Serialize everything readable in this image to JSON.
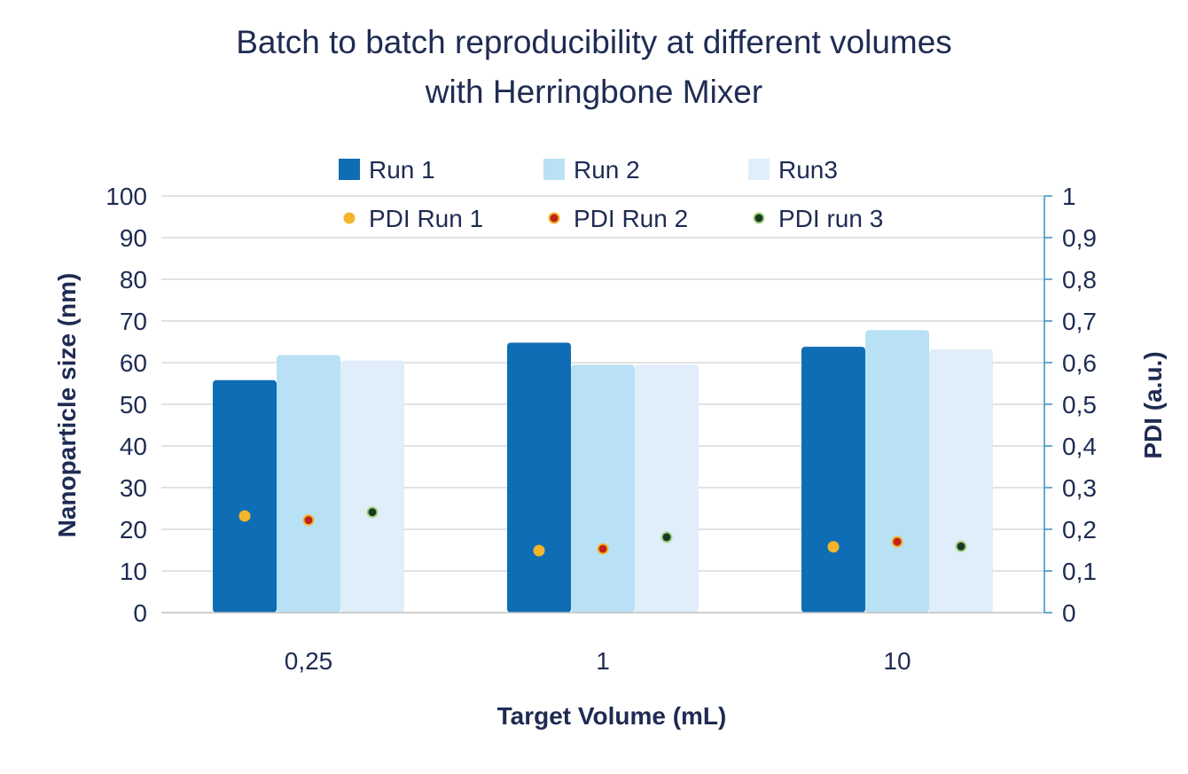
{
  "chart_data": {
    "type": "bar",
    "title_lines": [
      "Batch to batch reproducibility at different volumes",
      "with Herringbone Mixer"
    ],
    "xlabel": "Target Volume (mL)",
    "ylabel": "Nanoparticle size (nm)",
    "y2label": "PDI (a.u.)",
    "categories": [
      "0,25",
      "1",
      "10"
    ],
    "ylim": [
      0,
      100
    ],
    "y2lim": [
      0,
      1
    ],
    "yticks": [
      "0",
      "10",
      "20",
      "30",
      "40",
      "50",
      "60",
      "70",
      "80",
      "90",
      "100"
    ],
    "y2ticks": [
      "0",
      "0,1",
      "0,2",
      "0,3",
      "0,4",
      "0,5",
      "0,6",
      "0,7",
      "0,8",
      "0,9",
      "1"
    ],
    "grid": true,
    "legend_position": "top",
    "series": [
      {
        "name": "Run 1",
        "kind": "bar",
        "axis": "left",
        "color": "#0f6db6",
        "values": [
          55.8,
          64.8,
          63.8
        ]
      },
      {
        "name": "Run 2",
        "kind": "bar",
        "axis": "left",
        "color": "#b9e1f5",
        "values": [
          61.8,
          59.5,
          67.8
        ]
      },
      {
        "name": "Run3",
        "kind": "bar",
        "axis": "left",
        "color": "#e0eefa",
        "values": [
          60.5,
          59.5,
          63.2
        ]
      },
      {
        "name": "PDI Run 1",
        "kind": "scatter",
        "axis": "right",
        "color": "#f2b52c",
        "stroke": "#f2b52c",
        "values": [
          0.232,
          0.149,
          0.158
        ]
      },
      {
        "name": "PDI Run 2",
        "kind": "scatter",
        "axis": "right",
        "color": "#c0221d",
        "stroke": "#f2b52c",
        "values": [
          0.222,
          0.153,
          0.17
        ]
      },
      {
        "name": "PDI run 3",
        "kind": "scatter",
        "axis": "right",
        "color": "#163a26",
        "stroke": "#a7d37f",
        "values": [
          0.241,
          0.181,
          0.159
        ]
      }
    ]
  }
}
